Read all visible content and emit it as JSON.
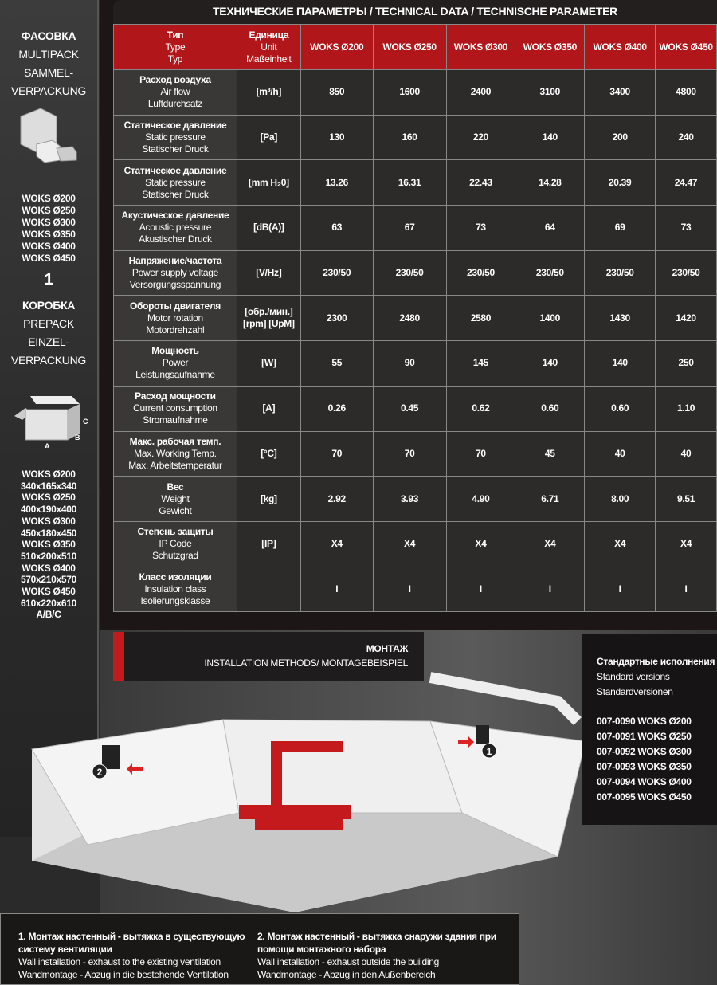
{
  "packaging": {
    "multipack_ru": "ФАСОВКА",
    "multipack_en": "MULTIPACK",
    "multipack_de1": "SAMMEL-",
    "multipack_de2": "VERPACKUNG",
    "multipack_models": [
      "WOKS Ø200",
      "WOKS Ø250",
      "WOKS Ø300",
      "WOKS Ø350",
      "WOKS Ø400",
      "WOKS Ø450"
    ],
    "multipack_qty": "1",
    "prepack_ru": "КОРОБКА",
    "prepack_en": "PREPACK",
    "prepack_de1": "EINZEL-",
    "prepack_de2": "VERPACKUNG",
    "box_labels": {
      "a": "A",
      "b": "B",
      "c": "C"
    },
    "box_sizes": [
      "WOKS Ø200",
      "340x165x340",
      "WOKS Ø250",
      "400x190x400",
      "WOKS Ø300",
      "450x180x450",
      "WOKS Ø350",
      "510x200x510",
      "WOKS Ø400",
      "570x210x570",
      "WOKS Ø450",
      "610x220x610",
      "A/B/C"
    ]
  },
  "table": {
    "title": "ТЕХНИЧЕСКИЕ ПАРАМЕТРЫ / TECHNICAL DATA / TECHNISCHE PARAMETER",
    "header": {
      "type": [
        "Тип",
        "Type",
        "Typ"
      ],
      "unit": [
        "Единица",
        "Unit",
        "Maßeinheit"
      ],
      "models": [
        "WOKS Ø200",
        "WOKS Ø250",
        "WOKS Ø300",
        "WOKS Ø350",
        "WOKS Ø400",
        "WOKS Ø450"
      ]
    },
    "rows": [
      {
        "ru": "Расход воздуха",
        "en": "Air flow",
        "de": "Luftdurchsatz",
        "unit": "[m³/h]",
        "values": [
          "850",
          "1600",
          "2400",
          "3100",
          "3400",
          "4800"
        ]
      },
      {
        "ru": "Статическое давление",
        "en": "Static pressure",
        "de": "Statischer Druck",
        "unit": "[Pa]",
        "values": [
          "130",
          "160",
          "220",
          "140",
          "200",
          "240"
        ]
      },
      {
        "ru": "Статическое давление",
        "en": "Static pressure",
        "de": "Statischer Druck",
        "unit": "[mm H₂0]",
        "values": [
          "13.26",
          "16.31",
          "22.43",
          "14.28",
          "20.39",
          "24.47"
        ]
      },
      {
        "ru": "Акустическое давление",
        "en": "Acoustic pressure",
        "de": "Akustischer Druck",
        "unit": "[dB(A)]",
        "values": [
          "63",
          "67",
          "73",
          "64",
          "69",
          "73"
        ]
      },
      {
        "ru": "Напряжение/частота",
        "en": "Power supply voltage",
        "de": "Versorgungsspannung",
        "unit": "[V/Hz]",
        "values": [
          "230/50",
          "230/50",
          "230/50",
          "230/50",
          "230/50",
          "230/50"
        ]
      },
      {
        "ru": "Обороты двигателя",
        "en": "Motor rotation",
        "de": "Motordrehzahl",
        "unit": "[обр./мин.] [rpm] [UpM]",
        "values": [
          "2300",
          "2480",
          "2580",
          "1400",
          "1430",
          "1420"
        ]
      },
      {
        "ru": "Мощность",
        "en": "Power",
        "de": "Leistungsaufnahme",
        "unit": "[W]",
        "values": [
          "55",
          "90",
          "145",
          "140",
          "140",
          "250"
        ]
      },
      {
        "ru": "Расход мощности",
        "en": "Current consumption",
        "de": "Stromaufnahme",
        "unit": "[A]",
        "values": [
          "0.26",
          "0.45",
          "0.62",
          "0.60",
          "0.60",
          "1.10"
        ]
      },
      {
        "ru": "Макс. рабочая темп.",
        "en": "Max. Working Temp.",
        "de": "Max. Arbeitstemperatur",
        "unit": "[°C]",
        "values": [
          "70",
          "70",
          "70",
          "45",
          "40",
          "40"
        ]
      },
      {
        "ru": "Вес",
        "en": "Weight",
        "de": "Gewicht",
        "unit": "[kg]",
        "values": [
          "2.92",
          "3.93",
          "4.90",
          "6.71",
          "8.00",
          "9.51"
        ]
      },
      {
        "ru": "Степень защиты",
        "en": "IP Code",
        "de": "Schutzgrad",
        "unit": "[IP]",
        "values": [
          "X4",
          "X4",
          "X4",
          "X4",
          "X4",
          "X4"
        ]
      },
      {
        "ru": "Класс изоляции",
        "en": "Insulation class",
        "de": "Isolierungsklasse",
        "unit": "",
        "values": [
          "I",
          "I",
          "I",
          "I",
          "I",
          "I"
        ]
      }
    ]
  },
  "installation": {
    "title": "МОНТАЖ",
    "subtitle": "INSTALLATION METHODS/ MONTAGEBEISPIEL",
    "markers": [
      "1",
      "2"
    ]
  },
  "versions": {
    "ru": "Стандартные исполнения",
    "en": "Standard versions",
    "de": "Standardversionen",
    "items": [
      "007-0090 WOKS Ø200",
      "007-0091 WOKS Ø250",
      "007-0092 WOKS Ø300",
      "007-0093 WOKS Ø350",
      "007-0094 WOKS Ø400",
      "007-0095 WOKS Ø450"
    ]
  },
  "captions": [
    {
      "ru": "1. Монтаж настенный - вытяжка в существующую систему вентиляции",
      "en": "Wall installation - exhaust to the existing ventilation",
      "de": "Wandmontage - Abzug in die bestehende Ventilation"
    },
    {
      "ru": "2. Монтаж настенный - вытяжка снаружи здания при помощи монтажного набора",
      "en": "Wall installation - exhaust outside the building",
      "de": "Wandmontage - Abzug in den Außenbereich"
    }
  ]
}
